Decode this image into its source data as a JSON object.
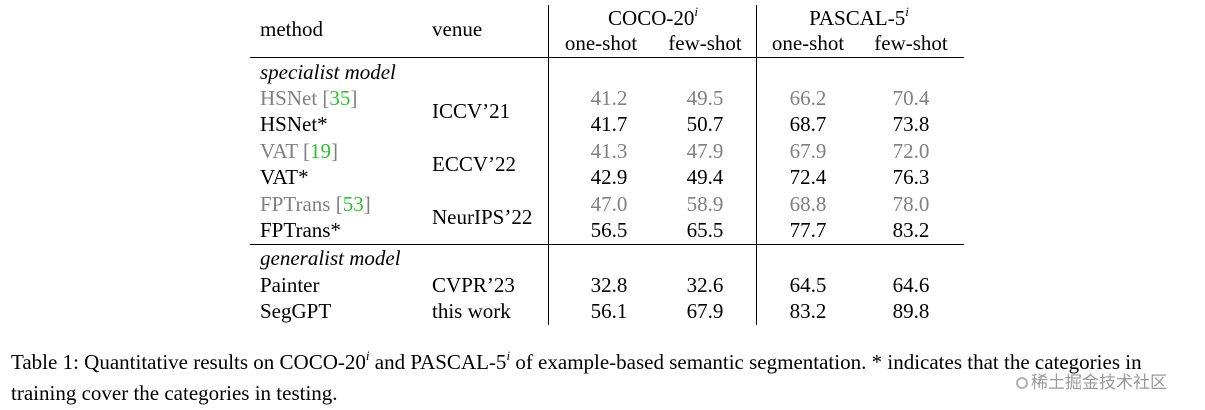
{
  "header": {
    "method": "method",
    "venue": "venue",
    "coco": {
      "name": "COCO-20",
      "sup": "i"
    },
    "pascal": {
      "name": "PASCAL-5",
      "sup": "i"
    },
    "one_shot": "one-shot",
    "few_shot": "few-shot"
  },
  "sections": {
    "specialist": "specialist model",
    "generalist": "generalist model"
  },
  "rows": [
    {
      "method": "HSNet",
      "cite": "35",
      "gray": true,
      "venue": "ICCV’21",
      "coco_one": "41.2",
      "coco_few": "49.5",
      "pascal_one": "66.2",
      "pascal_few": "70.4"
    },
    {
      "method": "HSNet*",
      "cite": "",
      "gray": false,
      "venue": "",
      "coco_one": "41.7",
      "coco_few": "50.7",
      "pascal_one": "68.7",
      "pascal_few": "73.8"
    },
    {
      "method": "VAT",
      "cite": "19",
      "gray": true,
      "venue": "ECCV’22",
      "coco_one": "41.3",
      "coco_few": "47.9",
      "pascal_one": "67.9",
      "pascal_few": "72.0"
    },
    {
      "method": "VAT*",
      "cite": "",
      "gray": false,
      "venue": "",
      "coco_one": "42.9",
      "coco_few": "49.4",
      "pascal_one": "72.4",
      "pascal_few": "76.3"
    },
    {
      "method": "FPTrans",
      "cite": "53",
      "gray": true,
      "venue": "NeurIPS’22",
      "coco_one": "47.0",
      "coco_few": "58.9",
      "pascal_one": "68.8",
      "pascal_few": "78.0"
    },
    {
      "method": "FPTrans*",
      "cite": "",
      "gray": false,
      "venue": "",
      "coco_one": "56.5",
      "coco_few": "65.5",
      "pascal_one": "77.7",
      "pascal_few": "83.2"
    },
    {
      "method": "Painter",
      "cite": "",
      "gray": false,
      "venue": "CVPR’23",
      "coco_one": "32.8",
      "coco_few": "32.6",
      "pascal_one": "64.5",
      "pascal_few": "64.6"
    },
    {
      "method": "SegGPT",
      "cite": "",
      "gray": false,
      "venue": "this work",
      "coco_one": "56.1",
      "coco_few": "67.9",
      "pascal_one": "83.2",
      "pascal_few": "89.8"
    }
  ],
  "caption": {
    "p1": "Table 1: Quantitative results on COCO-20",
    "sup1": "i",
    "p2": " and PASCAL-5",
    "sup2": "i",
    "p3": " of example-based semantic segmentation. * indicates that the categories in training cover the categories in testing."
  },
  "watermark": "稀土掘金技术社区"
}
